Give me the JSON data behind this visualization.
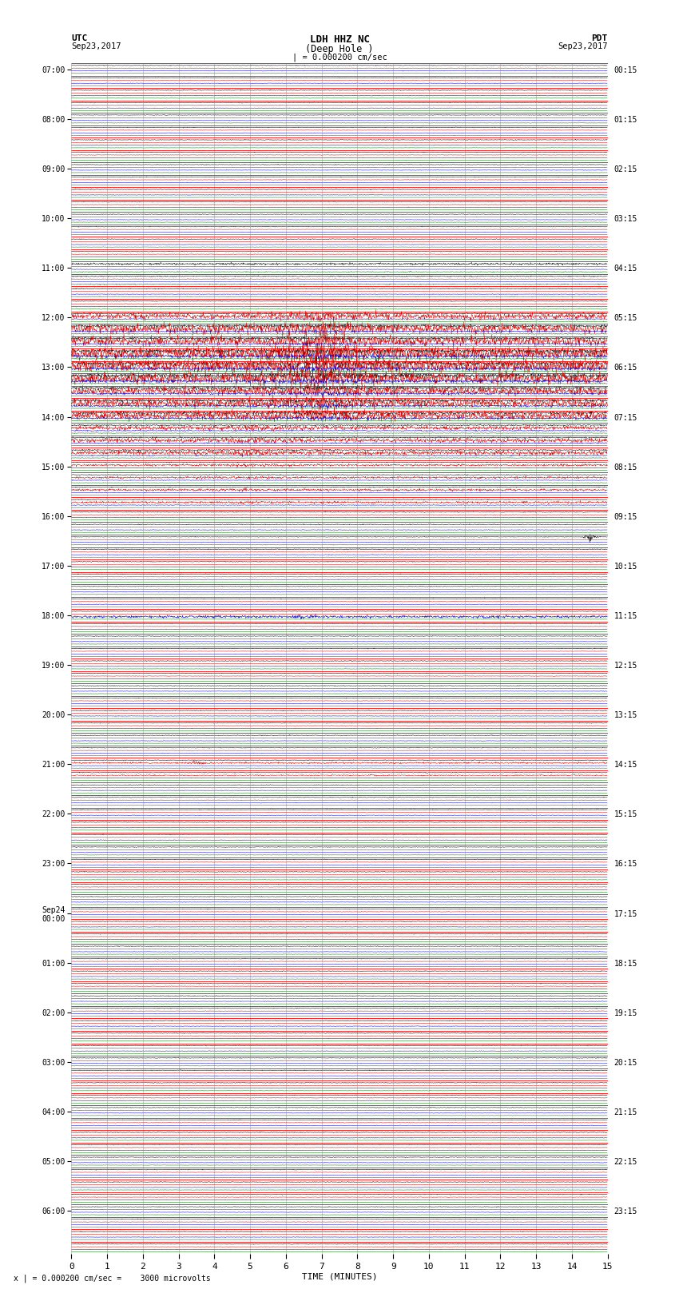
{
  "title_line1": "LDH HHZ NC",
  "title_line2": "(Deep Hole )",
  "scale_label": "| = 0.000200 cm/sec",
  "bottom_label": "x | = 0.000200 cm/sec =    3000 microvolts",
  "utc_label": "UTC",
  "utc_date": "Sep23,2017",
  "pdt_label": "PDT",
  "pdt_date": "Sep23,2017",
  "xlabel": "TIME (MINUTES)",
  "left_times_utc": [
    "07:00",
    "",
    "",
    "",
    "08:00",
    "",
    "",
    "",
    "09:00",
    "",
    "",
    "",
    "10:00",
    "",
    "",
    "",
    "11:00",
    "",
    "",
    "",
    "12:00",
    "",
    "",
    "",
    "13:00",
    "",
    "",
    "",
    "14:00",
    "",
    "",
    "",
    "15:00",
    "",
    "",
    "",
    "16:00",
    "",
    "",
    "",
    "17:00",
    "",
    "",
    "",
    "18:00",
    "",
    "",
    "",
    "19:00",
    "",
    "",
    "",
    "20:00",
    "",
    "",
    "",
    "21:00",
    "",
    "",
    "",
    "22:00",
    "",
    "",
    "",
    "23:00",
    "",
    "",
    "",
    "Sep24\n00:00",
    "",
    "",
    "",
    "01:00",
    "",
    "",
    "",
    "02:00",
    "",
    "",
    "",
    "03:00",
    "",
    "",
    "",
    "04:00",
    "",
    "",
    "",
    "05:00",
    "",
    "",
    "",
    "06:00",
    "",
    "",
    ""
  ],
  "right_times_pdt": [
    "00:15",
    "",
    "",
    "",
    "01:15",
    "",
    "",
    "",
    "02:15",
    "",
    "",
    "",
    "03:15",
    "",
    "",
    "",
    "04:15",
    "",
    "",
    "",
    "05:15",
    "",
    "",
    "",
    "06:15",
    "",
    "",
    "",
    "07:15",
    "",
    "",
    "",
    "08:15",
    "",
    "",
    "",
    "09:15",
    "",
    "",
    "",
    "10:15",
    "",
    "",
    "",
    "11:15",
    "",
    "",
    "",
    "12:15",
    "",
    "",
    "",
    "13:15",
    "",
    "",
    "",
    "14:15",
    "",
    "",
    "",
    "15:15",
    "",
    "",
    "",
    "16:15",
    "",
    "",
    "",
    "17:15",
    "",
    "",
    "",
    "18:15",
    "",
    "",
    "",
    "19:15",
    "",
    "",
    "",
    "20:15",
    "",
    "",
    "",
    "21:15",
    "",
    "",
    "",
    "22:15",
    "",
    "",
    "",
    "23:15",
    "",
    "",
    ""
  ],
  "num_rows": 96,
  "xmin": 0,
  "xmax": 15,
  "background_color": "#ffffff",
  "color_black": "#000000",
  "color_red": "#cc0000",
  "color_blue": "#0000cc",
  "color_green": "#007700",
  "color_grid_vert": "#888888",
  "color_row_sep": "#ff0000",
  "lw_trace": 0.35,
  "lw_sep": 0.6,
  "lw_grid": 0.4
}
